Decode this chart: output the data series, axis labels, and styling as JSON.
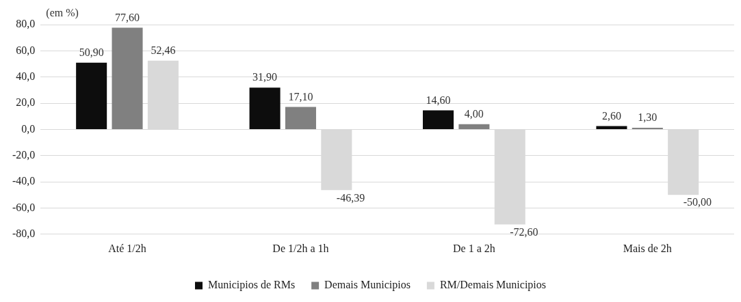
{
  "chart_data": {
    "type": "bar",
    "ylabel": "(em %)",
    "categories": [
      "Até 1/2h",
      "De 1/2h a 1h",
      "De 1 a 2h",
      "Mais de 2h"
    ],
    "series": [
      {
        "name": "Municipios de RMs",
        "color": "#0d0d0d",
        "values": [
          50.9,
          31.9,
          14.6,
          2.6
        ],
        "value_labels": [
          "50,90",
          "31,90",
          "14,60",
          "2,60"
        ]
      },
      {
        "name": "Demais Municipios",
        "color": "#808080",
        "values": [
          77.6,
          17.1,
          4.0,
          1.3
        ],
        "value_labels": [
          "77,60",
          "17,10",
          "4,00",
          "1,30"
        ]
      },
      {
        "name": "RM/Demais Municipios",
        "color": "#d9d9d9",
        "values": [
          52.46,
          -46.39,
          -72.6,
          -50.0
        ],
        "value_labels": [
          "52,46",
          "-46,39",
          "-72,60",
          "-50,00"
        ]
      }
    ],
    "ylim": [
      -80,
      80
    ],
    "yticks": [
      {
        "value": -80,
        "label": "-80,0"
      },
      {
        "value": -60,
        "label": "-60,0"
      },
      {
        "value": -40,
        "label": "-40,0"
      },
      {
        "value": -20,
        "label": "-20,0"
      },
      {
        "value": 0,
        "label": "0,0"
      },
      {
        "value": 20,
        "label": "20,0"
      },
      {
        "value": 40,
        "label": "40,0"
      },
      {
        "value": 60,
        "label": "60,0"
      },
      {
        "value": 80,
        "label": "80,0"
      }
    ],
    "grid": "y",
    "legend": "bottom"
  }
}
